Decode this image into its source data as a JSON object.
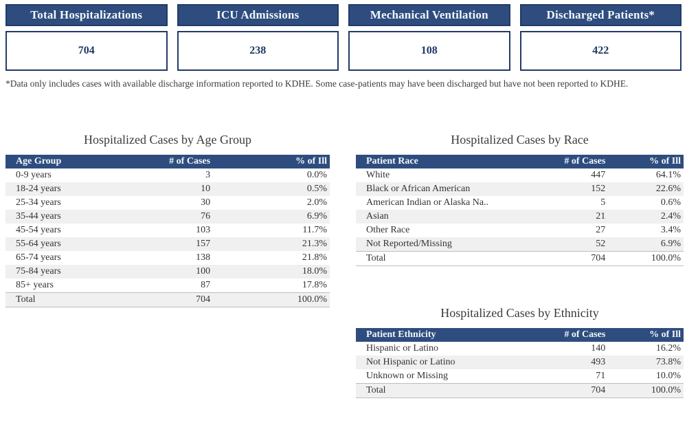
{
  "cards": [
    {
      "label": "Total Hospitalizations",
      "value": "704"
    },
    {
      "label": "ICU Admissions",
      "value": "238"
    },
    {
      "label": "Mechanical Ventilation",
      "value": "108"
    },
    {
      "label": "Discharged Patients*",
      "value": "422"
    }
  ],
  "footnote": "*Data only includes cases with available discharge information reported to KDHE. Some case-patients may have been discharged but have not been reported to KDHE.",
  "colors": {
    "header_blue": "#2e4d7e",
    "card_border_navy": "#223a67",
    "value_text_navy": "#1f3864",
    "alt_row_gray": "#f0f0f0",
    "title_gray": "#3a3a3a"
  },
  "chart_data": [
    {
      "type": "table",
      "title": "Hospitalized Cases by Age Group",
      "columns": [
        "Age Group",
        "# of Cases",
        "% of Ill"
      ],
      "rows": [
        [
          "0-9 years",
          3,
          "0.0%"
        ],
        [
          "18-24 years",
          10,
          "0.5%"
        ],
        [
          "25-34 years",
          30,
          "2.0%"
        ],
        [
          "35-44 years",
          76,
          "6.9%"
        ],
        [
          "45-54 years",
          103,
          "11.7%"
        ],
        [
          "55-64 years",
          157,
          "21.3%"
        ],
        [
          "65-74 years",
          138,
          "21.8%"
        ],
        [
          "75-84 years",
          100,
          "18.0%"
        ],
        [
          "85+ years",
          87,
          "17.8%"
        ]
      ],
      "total": [
        "Total",
        704,
        "100.0%"
      ]
    },
    {
      "type": "table",
      "title": "Hospitalized Cases by Race",
      "columns": [
        "Patient Race",
        "# of Cases",
        "% of Ill"
      ],
      "rows": [
        [
          "White",
          447,
          "64.1%"
        ],
        [
          "Black or African American",
          152,
          "22.6%"
        ],
        [
          "American Indian or Alaska Na..",
          5,
          "0.6%"
        ],
        [
          "Asian",
          21,
          "2.4%"
        ],
        [
          "Other Race",
          27,
          "3.4%"
        ],
        [
          "Not Reported/Missing",
          52,
          "6.9%"
        ]
      ],
      "total": [
        "Total",
        704,
        "100.0%"
      ]
    },
    {
      "type": "table",
      "title": "Hospitalized Cases by Ethnicity",
      "columns": [
        "Patient Ethnicity",
        "# of Cases",
        "% of Ill"
      ],
      "rows": [
        [
          "Hispanic or Latino",
          140,
          "16.2%"
        ],
        [
          "Not Hispanic or Latino",
          493,
          "73.8%"
        ],
        [
          "Unknown or Missing",
          71,
          "10.0%"
        ]
      ],
      "total": [
        "Total",
        704,
        "100.0%"
      ]
    }
  ]
}
